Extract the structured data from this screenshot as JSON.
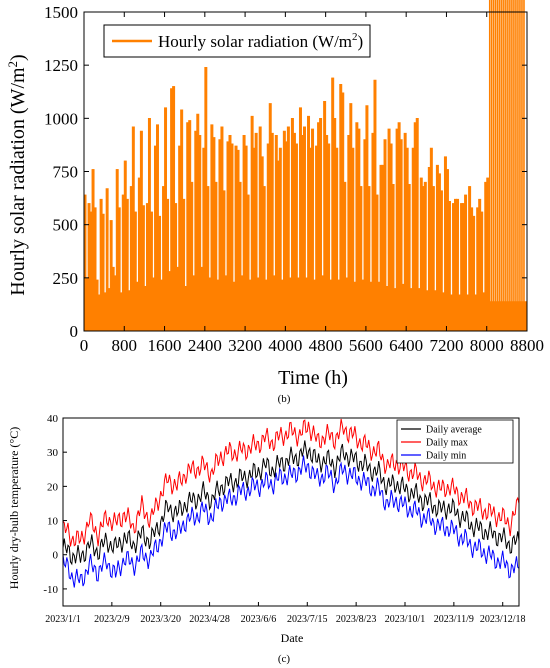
{
  "chart_data": [
    {
      "type": "line",
      "panel_label": "(b)",
      "xlabel": "Time (h)",
      "ylabel": "Hourly solar radiation (W/m²)",
      "ylabel_main": "Hourly solar radiation (W/m",
      "ylabel_sup": "2",
      "ylabel_tail": ")",
      "xlim": [
        0,
        8800
      ],
      "ylim": [
        0,
        1500
      ],
      "x_ticks": [
        0,
        800,
        1600,
        2400,
        3200,
        4000,
        4800,
        5600,
        6400,
        7200,
        8000,
        8800
      ],
      "y_ticks": [
        0,
        250,
        500,
        750,
        1000,
        1250,
        1500
      ],
      "legend_position": "top-left",
      "series": [
        {
          "name": "Hourly solar radiation (W/m²)",
          "legend_main": "Hourly solar radiation (W/m",
          "legend_sup": "2",
          "legend_tail": ")",
          "color": "#ff8000",
          "style": "daily spikes 0 to peak",
          "x_day": [
            0,
            40,
            80,
            120,
            160,
            200,
            240,
            280,
            320,
            360,
            400,
            440,
            480,
            520,
            560,
            600,
            640,
            680,
            720,
            760,
            800,
            840,
            880,
            920,
            960,
            1000,
            1040,
            1080,
            1120,
            1160,
            1200,
            1240,
            1280,
            1320,
            1360,
            1400,
            1440,
            1480,
            1520,
            1560,
            1600,
            1640,
            1680,
            1720,
            1760,
            1800,
            1840,
            1880,
            1920,
            1960,
            2000,
            2040,
            2080,
            2120,
            2160,
            2200,
            2240,
            2280,
            2320,
            2360,
            2400,
            2440,
            2480,
            2520,
            2560,
            2600,
            2640,
            2680,
            2720,
            2760,
            2800,
            2840,
            2880,
            2920,
            2960,
            3000,
            3040,
            3080,
            3120,
            3160,
            3200,
            3240,
            3280,
            3320,
            3360,
            3400,
            3440,
            3480,
            3520,
            3560,
            3600,
            3640,
            3680,
            3720,
            3760,
            3800,
            3840,
            3880,
            3920,
            3960,
            4000,
            4040,
            4080,
            4120,
            4160,
            4200,
            4240,
            4280,
            4320,
            4360,
            4400,
            4440,
            4480,
            4520,
            4560,
            4600,
            4640,
            4680,
            4720,
            4760,
            4800,
            4840,
            4880,
            4920,
            4960,
            5000,
            5040,
            5080,
            5120,
            5160,
            5200,
            5240,
            5280,
            5320,
            5360,
            5400,
            5440,
            5480,
            5520,
            5560,
            5600,
            5640,
            5680,
            5720,
            5760,
            5800,
            5840,
            5880,
            5920,
            5960,
            6000,
            6040,
            6080,
            6120,
            6160,
            6200,
            6240,
            6280,
            6320,
            6360,
            6400,
            6440,
            6480,
            6520,
            6560,
            6600,
            6640,
            6680,
            6720,
            6760,
            6800,
            6840,
            6880,
            6920,
            6960,
            7000,
            7040,
            7080,
            7120,
            7160,
            7200,
            7240,
            7280,
            7320,
            7360,
            7400,
            7440,
            7480,
            7520,
            7560,
            7600,
            7640,
            7680,
            7720,
            7760,
            7800,
            7840,
            7880,
            7920,
            7960,
            8000,
            8040,
            8080,
            8120,
            8160,
            8200,
            8240,
            8280,
            8320,
            8360,
            8400,
            8440,
            8480,
            8520,
            8560,
            8600,
            8640,
            8680,
            8720
          ],
          "peak": [
            640,
            250,
            600,
            560,
            760,
            580,
            240,
            170,
            620,
            550,
            180,
            670,
            200,
            520,
            300,
            260,
            760,
            580,
            180,
            640,
            800,
            620,
            190,
            680,
            960,
            560,
            230,
            720,
            940,
            590,
            210,
            600,
            1000,
            560,
            250,
            870,
            970,
            540,
            240,
            680,
            1050,
            620,
            280,
            1140,
            1150,
            600,
            300,
            870,
            1040,
            620,
            210,
            980,
            990,
            700,
            260,
            940,
            1020,
            920,
            300,
            860,
            1240,
            680,
            250,
            970,
            910,
            700,
            240,
            900,
            960,
            660,
            260,
            890,
            920,
            880,
            230,
            870,
            850,
            700,
            260,
            920,
            870,
            640,
            240,
            1010,
            860,
            930,
            250,
            960,
            820,
            680,
            240,
            880,
            1070,
            930,
            260,
            920,
            800,
            860,
            240,
            940,
            890,
            960,
            250,
            1000,
            930,
            880,
            250,
            1050,
            920,
            960,
            250,
            1010,
            860,
            950,
            240,
            870,
            980,
            1000,
            260,
            1080,
            920,
            880,
            240,
            1190,
            1000,
            860,
            240,
            1160,
            1120,
            700,
            250,
            920,
            1070,
            860,
            230,
            980,
            950,
            680,
            240,
            900,
            1060,
            680,
            230,
            930,
            1180,
            640,
            230,
            780,
            780,
            900,
            210,
            950,
            880,
            690,
            200,
            950,
            980,
            900,
            220,
            930,
            860,
            690,
            200,
            860,
            980,
            1000,
            200,
            720,
            680,
            700,
            190,
            770,
            860,
            680,
            190,
            780,
            740,
            660,
            180,
            820,
            760,
            610,
            170,
            600,
            620,
            620,
            170,
            600,
            600,
            640,
            170,
            680,
            580,
            540,
            170,
            580,
            620,
            560,
            180,
            700,
            720
          ]
        }
      ]
    },
    {
      "type": "line",
      "panel_label": "(c)",
      "xlabel": "Date",
      "ylabel": "Hourly dry-bulb temperature (°C)",
      "ylim": [
        -15,
        40
      ],
      "y_ticks": [
        -10,
        0,
        10,
        20,
        30,
        40
      ],
      "x_ticks": [
        "2023/1/1",
        "2023/2/9",
        "2023/3/20",
        "2023/4/28",
        "2023/6/6",
        "2023/7/15",
        "2023/8/23",
        "2023/10/1",
        "2023/11/9",
        "2023/12/18"
      ],
      "x_tick_days": [
        0,
        39,
        78,
        117,
        156,
        195,
        234,
        273,
        312,
        351
      ],
      "xlim_days": [
        0,
        364
      ],
      "legend_position": "top-right",
      "series": [
        {
          "name": "Daily average",
          "color": "#000000"
        },
        {
          "name": "Daily max",
          "color": "#ff0000"
        },
        {
          "name": "Daily min",
          "color": "#0000ff"
        }
      ],
      "x_day": [
        0,
        7,
        14,
        21,
        28,
        35,
        42,
        49,
        56,
        63,
        70,
        77,
        84,
        91,
        98,
        105,
        112,
        119,
        126,
        133,
        140,
        147,
        154,
        161,
        168,
        175,
        182,
        189,
        196,
        203,
        210,
        217,
        224,
        231,
        238,
        245,
        252,
        259,
        266,
        273,
        280,
        287,
        294,
        301,
        308,
        315,
        322,
        329,
        336,
        343,
        350,
        357,
        364
      ],
      "avg": [
        2,
        0,
        -1,
        3,
        1,
        4,
        2,
        5,
        3,
        6,
        4,
        9,
        14,
        12,
        15,
        16,
        18,
        16,
        20,
        21,
        22,
        23,
        24,
        26,
        25,
        27,
        28,
        29,
        31,
        27,
        28,
        26,
        30,
        28,
        27,
        25,
        24,
        20,
        21,
        19,
        18,
        16,
        15,
        13,
        14,
        12,
        10,
        8,
        7,
        6,
        5,
        3,
        4
      ],
      "max": [
        8,
        5,
        4,
        10,
        6,
        11,
        9,
        12,
        8,
        14,
        10,
        17,
        22,
        20,
        24,
        25,
        26,
        24,
        29,
        30,
        30,
        31,
        32,
        34,
        33,
        35,
        36,
        35,
        38,
        33,
        35,
        34,
        37,
        35,
        33,
        31,
        30,
        26,
        27,
        25,
        24,
        22,
        21,
        19,
        20,
        18,
        16,
        14,
        13,
        12,
        11,
        9,
        15
      ],
      "min": [
        -2,
        -6,
        -8,
        -3,
        -5,
        -2,
        -6,
        -1,
        -3,
        0,
        -1,
        4,
        8,
        6,
        10,
        11,
        13,
        11,
        16,
        16,
        18,
        19,
        20,
        21,
        21,
        23,
        23,
        25,
        26,
        22,
        24,
        21,
        25,
        23,
        22,
        20,
        19,
        15,
        16,
        14,
        13,
        11,
        10,
        8,
        8,
        6,
        4,
        2,
        1,
        -1,
        -2,
        -4,
        -4
      ]
    }
  ]
}
